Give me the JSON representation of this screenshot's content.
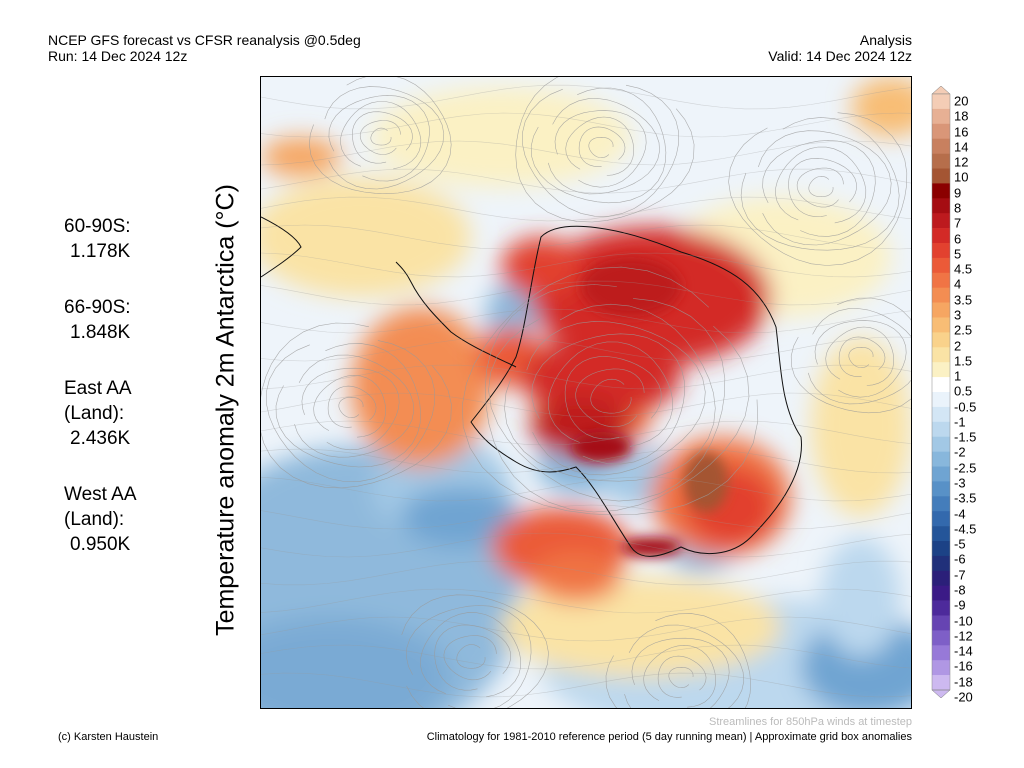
{
  "header": {
    "left_line1": "NCEP GFS forecast vs CFSR reanalysis @0.5deg",
    "left_line2": "Run: 14 Dec 2024 12z",
    "right_line1": "Analysis",
    "right_line2": "Valid: 14 Dec 2024 12z"
  },
  "vertical_title": "Temperature anomaly 2m Antarctica (°C)",
  "stats": [
    {
      "label": "60-90S:",
      "value": "1.178K"
    },
    {
      "label": "66-90S:",
      "value": "1.848K"
    },
    {
      "label": "East AA (Land):",
      "value": "2.436K"
    },
    {
      "label": "West AA (Land):",
      "value": "0.950K"
    }
  ],
  "colorbar": {
    "ticks": [
      "20",
      "18",
      "16",
      "14",
      "12",
      "10",
      "9",
      "8",
      "7",
      "6",
      "5",
      "4.5",
      "4",
      "3.5",
      "3",
      "2.5",
      "2",
      "1.5",
      "1",
      "0.5",
      "-0.5",
      "-1",
      "-1.5",
      "-2",
      "-2.5",
      "-3",
      "-3.5",
      "-4",
      "-4.5",
      "-5",
      "-6",
      "-7",
      "-8",
      "-9",
      "-10",
      "-12",
      "-14",
      "-16",
      "-18",
      "-20"
    ],
    "colors": [
      "#f4cdb6",
      "#e7b094",
      "#d99678",
      "#c8805f",
      "#b66e4b",
      "#a45533",
      "#8b0000",
      "#a50d12",
      "#bd1a1e",
      "#d32a26",
      "#e2412f",
      "#eb5a38",
      "#f07445",
      "#f38d52",
      "#f6a662",
      "#f8bd75",
      "#f9d28b",
      "#fae3a5",
      "#fbf1c4",
      "#ffffff",
      "#eaf3fb",
      "#d3e6f5",
      "#bcd8ee",
      "#a2c8e5",
      "#88b7dc",
      "#6fa4d2",
      "#5891c7",
      "#447dbb",
      "#3369ad",
      "#245599",
      "#1c4286",
      "#20307a",
      "#2b1f79",
      "#3b1a86",
      "#4d2a9b",
      "#6644b2",
      "#7e5fc7",
      "#9779d8",
      "#b097e4",
      "#cdb9f0"
    ]
  },
  "footer": {
    "streamlines_note": "Streamlines for 850hPa winds at timestep",
    "credit": "(c) Karsten Haustein",
    "climatology_note": "Climatology for 1981-2010 reference period (5 day running mean) | Approximate grid box anomalies"
  }
}
